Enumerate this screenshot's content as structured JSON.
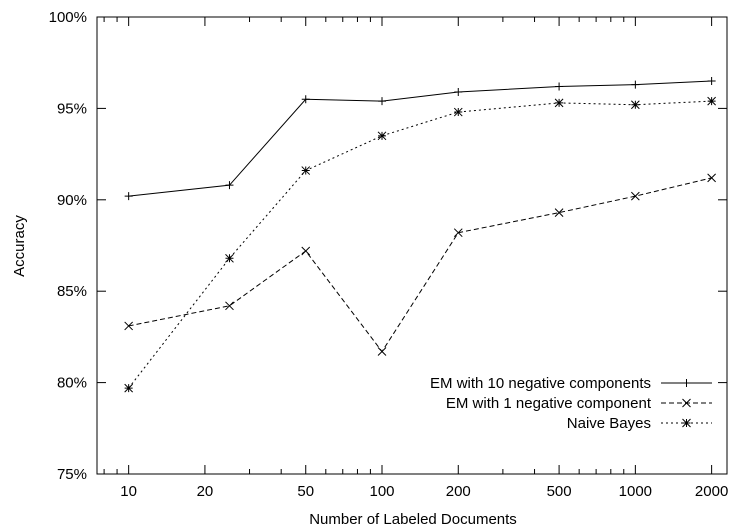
{
  "chart_data": {
    "type": "line",
    "title": "",
    "xlabel": "Number of Labeled Documents",
    "ylabel": "Accuracy",
    "xscale": "log",
    "xlim": [
      7.5,
      2300
    ],
    "ylim": [
      75,
      100
    ],
    "x_ticks": [
      10,
      20,
      50,
      100,
      200,
      500,
      1000,
      2000
    ],
    "x_tick_labels": [
      "10",
      "20",
      "50",
      "100",
      "200",
      "500",
      "1000",
      "2000"
    ],
    "y_ticks": [
      75,
      80,
      85,
      90,
      95,
      100
    ],
    "y_tick_labels": [
      "75%",
      "80%",
      "85%",
      "90%",
      "95%",
      "100%"
    ],
    "grid": false,
    "legend_position": "bottom-right",
    "x": [
      10,
      25,
      50,
      100,
      200,
      500,
      1000,
      2000
    ],
    "series": [
      {
        "name": "EM with 10 negative components",
        "marker": "plus",
        "dash": "solid",
        "values": [
          90.2,
          90.8,
          95.5,
          95.4,
          95.9,
          96.2,
          96.3,
          96.5
        ]
      },
      {
        "name": "EM with 1 negative component",
        "marker": "cross",
        "dash": "dashed",
        "values": [
          83.1,
          84.2,
          87.2,
          81.7,
          88.2,
          89.3,
          90.2,
          91.2
        ]
      },
      {
        "name": "Naive Bayes",
        "marker": "star",
        "dash": "dotted",
        "values": [
          79.7,
          86.8,
          91.6,
          93.5,
          94.8,
          95.3,
          95.2,
          95.4
        ]
      }
    ]
  }
}
